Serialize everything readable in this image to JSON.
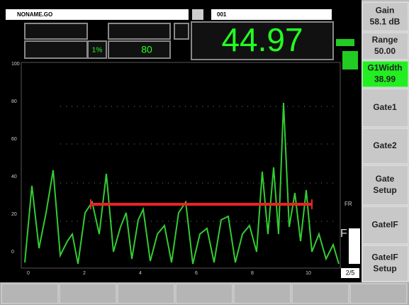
{
  "header": {
    "file": "NONAME.GO",
    "id": "001"
  },
  "readings": {
    "percent": "1%",
    "value": "80",
    "main": "44.97",
    "page": "2/5",
    "fr": "FR",
    "f": "F"
  },
  "softkeys": [
    {
      "label": "Gain",
      "value": "58.1 dB"
    },
    {
      "label": "Range",
      "value": "50.00"
    },
    {
      "label": "G1Width",
      "value": "38.99"
    },
    {
      "label": "Gate1"
    },
    {
      "label": "Gate2"
    },
    {
      "label": "Gate",
      "value": "Setup"
    },
    {
      "label": "GateIF"
    },
    {
      "label": "GateIF",
      "value": "Setup"
    }
  ],
  "y_axis": [
    "100",
    "80",
    "60",
    "40",
    "20",
    "0"
  ],
  "x_axis": [
    "0",
    "2",
    "4",
    "6",
    "8",
    "10"
  ]
}
